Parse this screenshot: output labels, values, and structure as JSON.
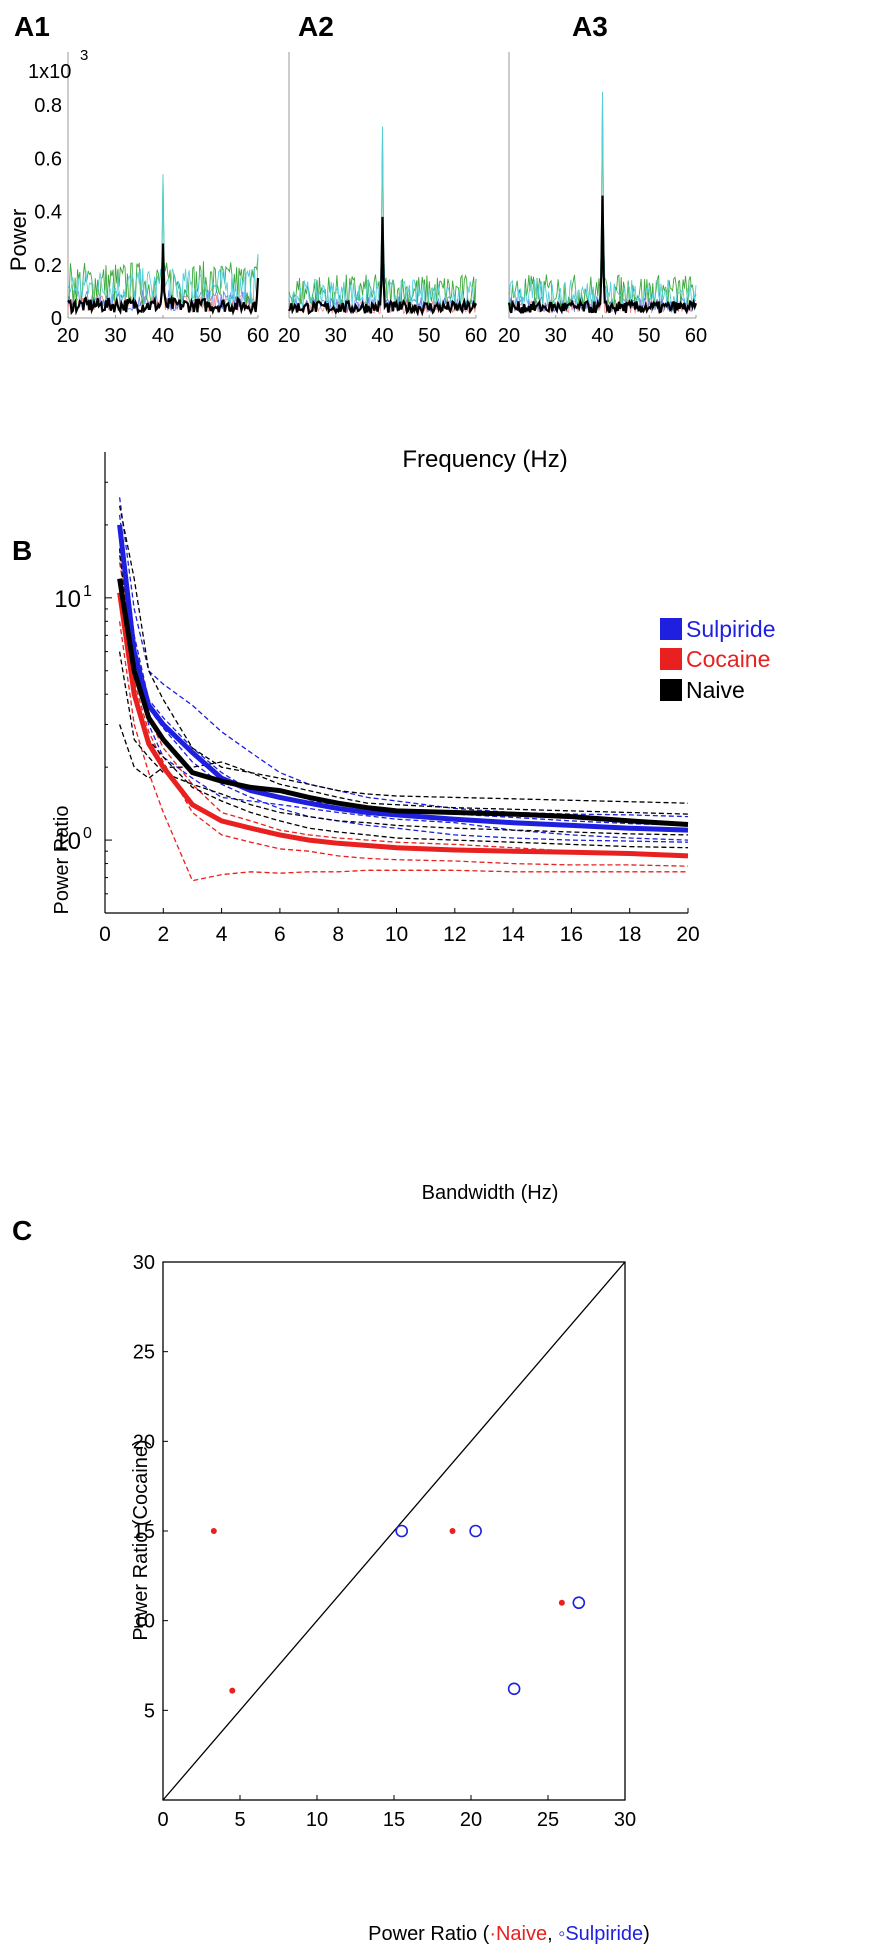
{
  "panels": {
    "a1": "A1",
    "a2": "A2",
    "a3": "A3",
    "b": "B",
    "c": "C"
  },
  "colors": {
    "sulpiride": "#1f1fe0",
    "cocaine": "#e82020",
    "naive": "#000000",
    "cyan": "#55cfd8",
    "green": "#3aa83a",
    "pink": "#f08a8a",
    "lightblue": "#5a7ef0"
  },
  "chart_data": [
    {
      "type": "line",
      "panel": "A1",
      "title": "",
      "xlabel": "Frequency (Hz)",
      "ylabel": "Power",
      "y_scale_label": "1x10",
      "y_scale_exp": "3",
      "xlim": [
        20,
        60
      ],
      "ylim": [
        0,
        1.0
      ],
      "xticks": [
        "20",
        "30",
        "40",
        "50",
        "60"
      ],
      "yticks": [
        "0",
        "0.2",
        "0.4",
        "0.6",
        "0.8"
      ],
      "mean_baseline": 0.06,
      "noise_baseline": 0.13,
      "peaks": [
        {
          "x": 40,
          "mean": 0.28,
          "max": 0.54
        },
        {
          "x": 60,
          "mean": 0.15,
          "max": 0.24
        }
      ]
    },
    {
      "type": "line",
      "panel": "A2",
      "xlim": [
        20,
        60
      ],
      "ylim": [
        0,
        1.0
      ],
      "xticks": [
        "20",
        "30",
        "40",
        "50",
        "60"
      ],
      "mean_baseline": 0.05,
      "noise_baseline": 0.1,
      "peaks": [
        {
          "x": 40,
          "mean": 0.38,
          "max": 0.72
        }
      ]
    },
    {
      "type": "line",
      "panel": "A3",
      "xlim": [
        20,
        60
      ],
      "ylim": [
        0,
        1.0
      ],
      "xticks": [
        "20",
        "30",
        "40",
        "50",
        "60"
      ],
      "mean_baseline": 0.05,
      "noise_baseline": 0.1,
      "peaks": [
        {
          "x": 40,
          "mean": 0.46,
          "max": 0.85
        }
      ]
    },
    {
      "type": "line",
      "panel": "B",
      "xlabel": "Bandwidth (Hz)",
      "ylabel": "Power Ratio",
      "yscale": "log",
      "xlim": [
        0,
        20
      ],
      "ylim": [
        0.5,
        40
      ],
      "xticks": [
        "0",
        "2",
        "4",
        "6",
        "8",
        "10",
        "12",
        "14",
        "16",
        "18",
        "20"
      ],
      "yticks": [
        {
          "base": "10",
          "exp": "1",
          "value": 10
        },
        {
          "base": "10",
          "exp": "0",
          "value": 1
        }
      ],
      "legend": [
        "Sulpiride",
        "Cocaine",
        "Naive"
      ],
      "legend_position": "top-right",
      "x": [
        0.5,
        1,
        1.5,
        2,
        3,
        4,
        5,
        6,
        7,
        8,
        9,
        10,
        12,
        14,
        16,
        18,
        20
      ],
      "series": [
        {
          "name": "Sulpiride",
          "values": [
            20,
            6.0,
            3.6,
            3.0,
            2.3,
            1.8,
            1.6,
            1.5,
            1.42,
            1.35,
            1.3,
            1.27,
            1.22,
            1.18,
            1.15,
            1.12,
            1.1
          ]
        },
        {
          "name": "Cocaine",
          "values": [
            10.5,
            4.0,
            2.5,
            2.0,
            1.4,
            1.2,
            1.12,
            1.05,
            1.0,
            0.97,
            0.95,
            0.93,
            0.91,
            0.9,
            0.89,
            0.88,
            0.86
          ]
        },
        {
          "name": "Naive",
          "values": [
            12,
            5.0,
            3.2,
            2.6,
            1.9,
            1.75,
            1.65,
            1.6,
            1.5,
            1.42,
            1.36,
            1.32,
            1.3,
            1.28,
            1.25,
            1.2,
            1.16
          ]
        }
      ],
      "individual": [
        {
          "group": "Sulpiride",
          "values": [
            26,
            9.0,
            5.0,
            4.4,
            3.6,
            2.8,
            2.3,
            1.9,
            1.7,
            1.6,
            1.5,
            1.45,
            1.35,
            1.3,
            1.28,
            1.27,
            1.25
          ]
        },
        {
          "group": "Sulpiride",
          "values": [
            18,
            5.5,
            3.5,
            2.9,
            2.1,
            1.7,
            1.5,
            1.35,
            1.25,
            1.2,
            1.15,
            1.12,
            1.05,
            1.02,
            1.0,
            0.99,
            0.98
          ]
        },
        {
          "group": "Sulpiride",
          "values": [
            22,
            7.0,
            3.8,
            3.2,
            2.4,
            1.9,
            1.6,
            1.5,
            1.45,
            1.4,
            1.36,
            1.33,
            1.28,
            1.24,
            1.2,
            1.17,
            1.15
          ]
        },
        {
          "group": "Sulpiride",
          "values": [
            15,
            5.0,
            3.0,
            2.2,
            1.8,
            1.5,
            1.45,
            1.4,
            1.35,
            1.3,
            1.26,
            1.22,
            1.18,
            1.1,
            1.05,
            1.02,
            1.0
          ]
        },
        {
          "group": "Cocaine",
          "values": [
            8,
            3.0,
            1.9,
            1.3,
            0.68,
            0.72,
            0.74,
            0.73,
            0.74,
            0.74,
            0.75,
            0.75,
            0.75,
            0.74,
            0.74,
            0.74,
            0.74
          ]
        },
        {
          "group": "Cocaine",
          "values": [
            11,
            4.5,
            2.8,
            2.1,
            1.3,
            1.05,
            0.98,
            0.92,
            0.9,
            0.86,
            0.84,
            0.83,
            0.82,
            0.8,
            0.79,
            0.79,
            0.78
          ]
        },
        {
          "group": "Cocaine",
          "values": [
            14,
            6.0,
            3.2,
            2.4,
            1.7,
            1.3,
            1.2,
            1.1,
            1.05,
            1.02,
            1.0,
            0.98,
            0.96,
            0.93,
            0.9,
            0.88,
            0.86
          ]
        },
        {
          "group": "Naive",
          "values": [
            24,
            12.0,
            5.0,
            3.8,
            2.4,
            2.0,
            1.9,
            1.8,
            1.7,
            1.6,
            1.55,
            1.52,
            1.5,
            1.48,
            1.46,
            1.44,
            1.42
          ]
        },
        {
          "group": "Naive",
          "values": [
            3,
            2.0,
            1.8,
            2.0,
            2.0,
            2.1,
            1.9,
            1.7,
            1.6,
            1.5,
            1.42,
            1.4,
            1.36,
            1.34,
            1.32,
            1.3,
            1.28
          ]
        },
        {
          "group": "Naive",
          "values": [
            6,
            2.6,
            2.2,
            1.9,
            1.7,
            1.55,
            1.4,
            1.3,
            1.25,
            1.2,
            1.18,
            1.15,
            1.12,
            1.1,
            1.08,
            1.06,
            1.05
          ]
        },
        {
          "group": "Naive",
          "values": [
            16,
            4.0,
            2.6,
            2.2,
            1.65,
            1.45,
            1.3,
            1.2,
            1.12,
            1.08,
            1.05,
            1.02,
            1.0,
            0.98,
            0.96,
            0.94,
            0.93
          ]
        }
      ]
    },
    {
      "type": "scatter",
      "panel": "C",
      "xlabel_prefix": "Power Ratio (",
      "xlabel_naive": "Naive",
      "xlabel_sep": ", ",
      "xlabel_sulpiride": "Sulpiride",
      "xlabel_suffix": ")",
      "ylabel": "Power Ratio (Cocaine)",
      "xlim": [
        0,
        30
      ],
      "ylim": [
        0,
        30
      ],
      "xticks": [
        "0",
        "5",
        "10",
        "15",
        "20",
        "25",
        "30"
      ],
      "yticks": [
        "5",
        "10",
        "15",
        "20",
        "25",
        "30"
      ],
      "diagonal": true,
      "series": [
        {
          "name": "Naive",
          "marker": "dot",
          "points": [
            [
              3.3,
              15
            ],
            [
              4.5,
              6.1
            ],
            [
              18.8,
              15
            ],
            [
              25.9,
              11
            ]
          ]
        },
        {
          "name": "Sulpiride",
          "marker": "circle",
          "points": [
            [
              15.5,
              15
            ],
            [
              20.3,
              15
            ],
            [
              22.8,
              6.2
            ],
            [
              27,
              11
            ]
          ]
        }
      ]
    }
  ]
}
